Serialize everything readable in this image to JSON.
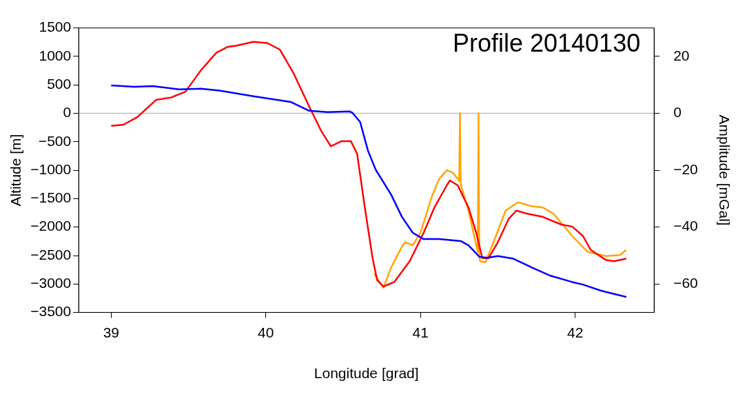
{
  "chart_data": {
    "type": "line",
    "title": "Profile 20140130",
    "xlabel": "Longitude [grad]",
    "ylabel": "Altitude [m]",
    "y2label": "Amplitude [mGal]",
    "xlim": [
      38.79,
      42.51
    ],
    "xticks": [
      39,
      40,
      41,
      42
    ],
    "ylim": [
      -3500,
      1500
    ],
    "yticks": [
      -3500,
      -3000,
      -2500,
      -2000,
      -1500,
      -1000,
      -500,
      0,
      500,
      1000,
      1500
    ],
    "y2lim": [
      -70,
      30
    ],
    "y2ticks": [
      -60,
      -40,
      -20,
      0,
      20
    ],
    "grid": false,
    "legend": false,
    "marker": "none",
    "line_style": "solid",
    "ref_lines": [
      {
        "axis": "y",
        "value": 0,
        "color": "#c0c0c0"
      }
    ],
    "series": [
      {
        "color": "#0000ff",
        "x": [
          39.0,
          39.15,
          39.27,
          39.44,
          39.58,
          39.7,
          39.92,
          40.16,
          40.28,
          40.4,
          40.54,
          40.56,
          40.61,
          40.66,
          40.71,
          40.81,
          40.88,
          40.95,
          41.02,
          41.12,
          41.26,
          41.31,
          41.38,
          41.43,
          41.5,
          41.6,
          41.72,
          41.84,
          41.98,
          42.05,
          42.17,
          42.32,
          42.33
        ],
        "values": [
          489,
          467,
          478,
          422,
          433,
          400,
          300,
          200,
          44,
          22,
          33,
          10,
          -155,
          -655,
          -990,
          -1430,
          -1820,
          -2100,
          -2210,
          -2210,
          -2245,
          -2320,
          -2520,
          -2540,
          -2510,
          -2555,
          -2710,
          -2855,
          -2965,
          -3010,
          -3120,
          -3220,
          -3230
        ]
      },
      {
        "color": "#ff0000",
        "axis": "y2",
        "x": [
          39.0,
          39.08,
          39.17,
          39.29,
          39.39,
          39.48,
          39.58,
          39.68,
          39.75,
          39.81,
          39.92,
          40.01,
          40.09,
          40.18,
          40.28,
          40.36,
          40.42,
          40.49,
          40.55,
          40.59,
          40.64,
          40.69,
          40.72,
          40.76,
          40.83,
          40.93,
          41.02,
          41.09,
          41.17,
          41.19,
          41.24,
          41.31,
          41.36,
          41.4,
          41.44,
          41.5,
          41.57,
          41.62,
          41.69,
          41.79,
          41.91,
          41.98,
          42.05,
          42.1,
          42.2,
          42.25,
          42.33
        ],
        "values": [
          -4.4,
          -4.0,
          -1.3,
          4.7,
          5.6,
          7.6,
          15.1,
          21.3,
          23.3,
          23.8,
          25.1,
          24.7,
          22.4,
          14.0,
          2.4,
          -6.4,
          -11.6,
          -9.8,
          -9.8,
          -14.2,
          -33.1,
          -50.9,
          -58.7,
          -60.9,
          -59.3,
          -52.0,
          -42.0,
          -33.1,
          -25.3,
          -23.6,
          -25.3,
          -33.1,
          -42.0,
          -50.9,
          -50.9,
          -45.3,
          -37.1,
          -34.2,
          -35.3,
          -36.4,
          -39.1,
          -39.8,
          -43.1,
          -48.0,
          -51.6,
          -52.0,
          -51.1
        ]
      },
      {
        "color": "#ffa500",
        "axis": "y2",
        "x": [
          40.7,
          40.76,
          40.81,
          40.88,
          40.9,
          40.95,
          41.0,
          41.07,
          41.12,
          41.17,
          41.21,
          41.25,
          41.255,
          41.26,
          41.265,
          41.31,
          41.37,
          41.375,
          41.38,
          41.385,
          41.42,
          41.48,
          41.55,
          41.63,
          41.72,
          41.79,
          41.86,
          41.98,
          42.08,
          42.2,
          42.29,
          42.33
        ],
        "values": [
          -56.4,
          -61.3,
          -54.2,
          -46.9,
          -45.3,
          -46.4,
          -42.0,
          -29.8,
          -23.1,
          -20.0,
          -20.9,
          -23.8,
          0,
          -24.7,
          -26.0,
          -34.2,
          -48.7,
          0,
          -50.0,
          -52.0,
          -52.4,
          -44.2,
          -34.2,
          -31.3,
          -32.7,
          -33.1,
          -35.3,
          -43.1,
          -48.7,
          -50.2,
          -49.8,
          -48.0
        ]
      }
    ]
  }
}
